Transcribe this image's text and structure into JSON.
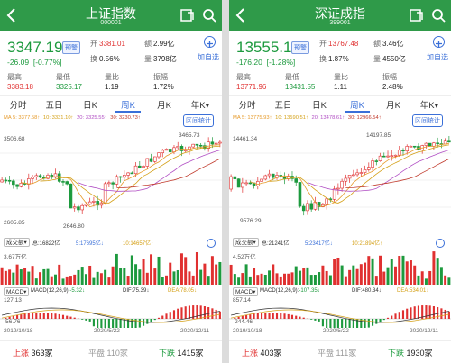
{
  "colors": {
    "header": "#2f9a49",
    "up": "#e03030",
    "down": "#1d9a3e",
    "accent": "#3a6fd8"
  },
  "icons": {
    "back": "back-arrow-icon",
    "share": "share-icon",
    "search": "search-icon",
    "add": "add-circle-icon",
    "settings": "gear-icon"
  },
  "panels": [
    {
      "title": "上证指数",
      "code": "000001",
      "price": "3347.19",
      "badge": "预警",
      "change": "-26.09",
      "change_pct": "[-0.77%]",
      "open_label": "开",
      "open": "3381.01",
      "amount_label": "额",
      "amount": "2.99亿",
      "turnover_label": "换",
      "turnover": "0.56%",
      "volume_label": "量",
      "volume": "3798亿",
      "high_label": "最高",
      "high": "3383.18",
      "low_label": "最低",
      "low": "3325.17",
      "ratio_label": "量比",
      "ratio": "1.19",
      "amp_label": "振幅",
      "amp": "1.72%",
      "add_label": "加自选",
      "tabs": [
        "分时",
        "五日",
        "日K",
        "周K",
        "月K",
        "年K▾"
      ],
      "active_tab": 3,
      "ma": [
        "MA 5: 3377.58↑",
        "10: 3331.10↑",
        "20: 3325.55↑",
        "30: 3230.73↑"
      ],
      "stat_label": "区间统计",
      "y_top": "3506.68",
      "y_bot": "2605.85",
      "hi_mark": "3465.73",
      "lo_mark": "2646.80",
      "vol_btn": "成交额▾",
      "vol_total": "总:16822亿",
      "vol_ma5": "5:17695亿↓",
      "vol_ma10": "10:14657亿↑",
      "vol_y": "3.67万亿",
      "macd_btn": "MACD▾",
      "macd_params": "MACD(12,26,9):",
      "macd_val": "-5.32↓",
      "dif": "DIF:75.39↓",
      "dea": "DEA:78.05↓",
      "macd_top": "127.13",
      "macd_bot": "-56.76",
      "dates": [
        "2019/10/18",
        "2020/5/22",
        "2020/12/11"
      ],
      "up_label": "上涨",
      "up_count": "363家",
      "flat_label": "平盘",
      "flat_count": "110家",
      "down_label": "下跌",
      "down_count": "1415家"
    },
    {
      "title": "深证成指",
      "code": "399001",
      "price": "13555.14",
      "badge": "预警",
      "change": "-176.20",
      "change_pct": "[-1.28%]",
      "open_label": "开",
      "open": "13767.48",
      "amount_label": "额",
      "amount": "3.46亿",
      "turnover_label": "换",
      "turnover": "1.87%",
      "volume_label": "量",
      "volume": "4550亿",
      "high_label": "最高",
      "high": "13771.96",
      "low_label": "最低",
      "low": "13431.55",
      "ratio_label": "量比",
      "ratio": "1.11",
      "amp_label": "振幅",
      "amp": "2.48%",
      "add_label": "加自选",
      "tabs": [
        "分时",
        "五日",
        "日K",
        "周K",
        "月K",
        "年K▾"
      ],
      "active_tab": 3,
      "ma": [
        "MA 5: 13775.93↑",
        "10: 13590.51↑",
        "20: 13478.61↑",
        "30: 12966.54↑"
      ],
      "stat_label": "区间统计",
      "y_top": "14461.34",
      "y_bot": "",
      "hi_mark": "14197.85",
      "lo_mark": "9576.29",
      "vol_btn": "成交额▾",
      "vol_total": "总:21241亿",
      "vol_ma5": "5:23417亿↓",
      "vol_ma10": "10:21894亿↑",
      "vol_y": "4.52万亿",
      "macd_btn": "MACD▾",
      "macd_params": "MACD(12,26,9):",
      "macd_val": "-107.35↓",
      "dif": "DIF:480.34↓",
      "dea": "DEA:534.01↓",
      "macd_top": "857.14",
      "macd_bot": "-244.46",
      "dates": [
        "2019/10/18",
        "2020/5/22",
        "2020/12/11"
      ],
      "up_label": "上涨",
      "up_count": "403家",
      "flat_label": "平盘",
      "flat_count": "111家",
      "down_label": "下跌",
      "down_count": "1930家"
    }
  ]
}
